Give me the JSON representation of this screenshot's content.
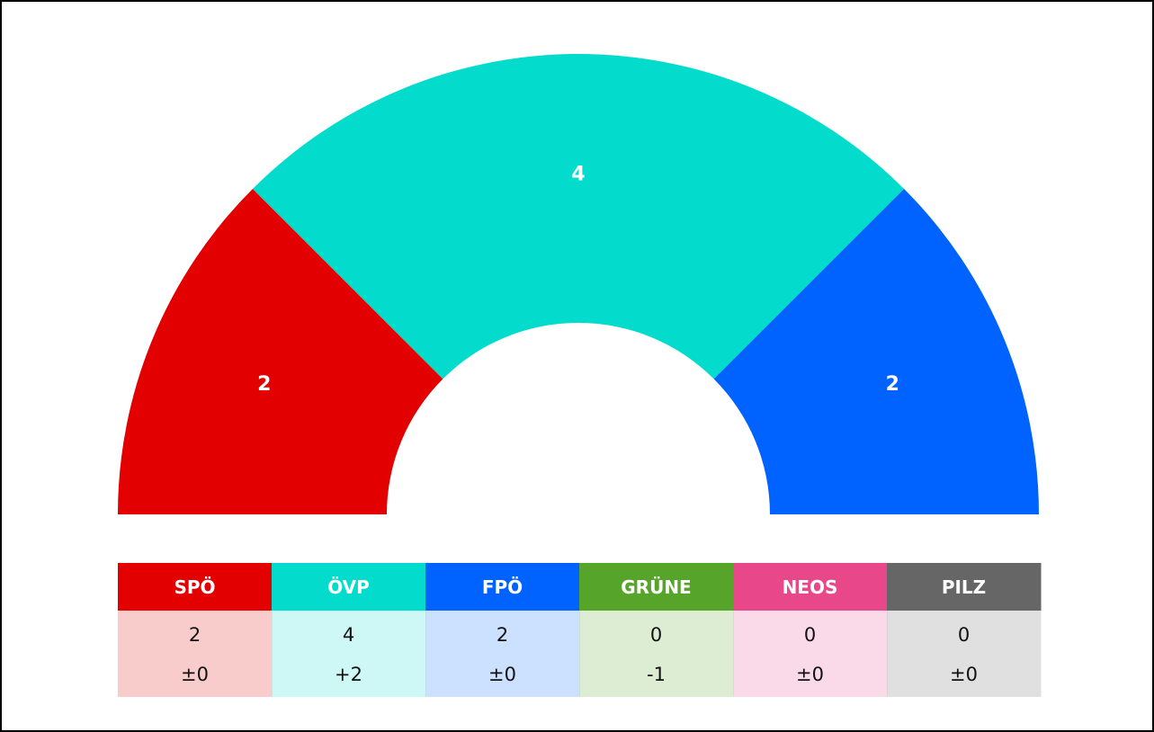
{
  "chart_data": {
    "type": "semicircle",
    "categories": [
      "SPÖ",
      "ÖVP",
      "FPÖ",
      "GRÜNE",
      "NEOS",
      "PILZ"
    ],
    "values": [
      2,
      4,
      2,
      0,
      0,
      0
    ],
    "changes": [
      "±0",
      "+2",
      "±0",
      "-1",
      "±0",
      "±0"
    ],
    "colors": [
      "#e20000",
      "#03dccc",
      "#0063ff",
      "#56a52a",
      "#e8488a",
      "#666666"
    ]
  }
}
